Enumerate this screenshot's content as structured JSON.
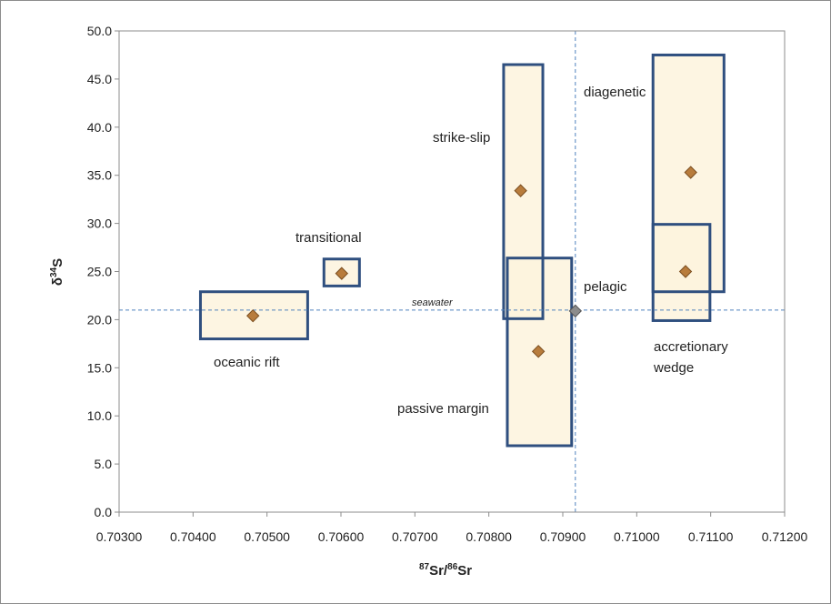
{
  "chart_data": {
    "type": "scatter",
    "title": "",
    "xlabel": {
      "sup1": "87",
      "base1": "Sr/",
      "sup2": "86",
      "base2": "Sr"
    },
    "ylabel": {
      "base": "δ",
      "sup": "34",
      "tail": "S"
    },
    "xlim": [
      0.703,
      0.712
    ],
    "ylim": [
      0,
      50
    ],
    "xticks": [
      "0.70300",
      "0.70400",
      "0.70500",
      "0.70600",
      "0.70700",
      "0.70800",
      "0.70900",
      "0.71000",
      "0.71100",
      "0.71200"
    ],
    "yticks": [
      "0.0",
      "5.0",
      "10.0",
      "15.0",
      "20.0",
      "25.0",
      "30.0",
      "35.0",
      "40.0",
      "45.0",
      "50.0"
    ],
    "grid": false,
    "reference_lines": [
      {
        "orientation": "horizontal",
        "value": 21.0,
        "label": "seawater"
      },
      {
        "orientation": "vertical",
        "value": 0.70917,
        "label": ""
      }
    ],
    "groups": [
      {
        "name": "oceanic rift",
        "x": 0.70481,
        "y": 20.4,
        "x_range": [
          0.7041,
          0.70555
        ],
        "y_range": [
          18.0,
          22.9
        ]
      },
      {
        "name": "transitional",
        "x": 0.70601,
        "y": 24.8,
        "x_range": [
          0.70577,
          0.70625
        ],
        "y_range": [
          23.5,
          26.3
        ]
      },
      {
        "name": "strike-slip",
        "x": 0.70843,
        "y": 33.4,
        "x_range": [
          0.7082,
          0.70873
        ],
        "y_range": [
          20.1,
          46.5
        ]
      },
      {
        "name": "passive margin",
        "x": 0.70867,
        "y": 16.7,
        "x_range": [
          0.70825,
          0.70912
        ],
        "y_range": [
          6.9,
          26.4
        ]
      },
      {
        "name": "pelagic",
        "x": 0.70917,
        "y": 20.9,
        "x_range": null,
        "y_range": null
      },
      {
        "name": "diagenetic",
        "x": 0.71073,
        "y": 35.3,
        "x_range": [
          0.71022,
          0.71118
        ],
        "y_range": [
          22.9,
          47.5
        ]
      },
      {
        "name": "accretionary wedge",
        "x": 0.71066,
        "y": 25.0,
        "x_range": [
          0.71022,
          0.71099
        ],
        "y_range": [
          19.9,
          29.9
        ]
      }
    ]
  },
  "labels": {
    "oceanic_rift": "oceanic rift",
    "transitional": "transitional",
    "strike_slip": "strike-slip",
    "passive_margin": "passive margin",
    "pelagic": "pelagic",
    "diagenetic": "diagenetic",
    "accretionary_line1": "accretionary",
    "accretionary_line2": "wedge",
    "seawater": "seawater"
  },
  "colors": {
    "box_fill": "#fdf3dd",
    "box_stroke": "#2f4f7f",
    "marker_fill": "#b87c3c",
    "marker_stroke": "#7a4d1f",
    "pelagic_marker": "#8c8c8c",
    "reference_line": "#4f81bd",
    "axis": "#8c8c8c"
  }
}
